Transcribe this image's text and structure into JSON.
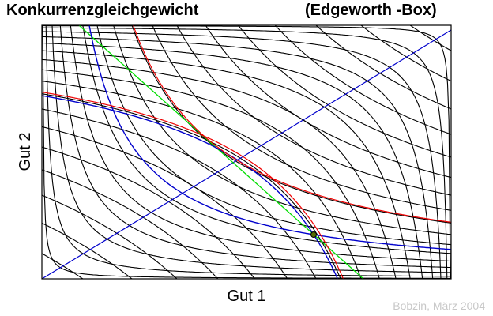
{
  "header": {
    "title": "Konkurrenzgleichgewicht",
    "subtitle": "(Edgeworth -Box)"
  },
  "axes": {
    "x_label": "Gut 1",
    "y_label": "Gut 2"
  },
  "footer": {
    "credit": "Bobzin, März 2004"
  }
}
